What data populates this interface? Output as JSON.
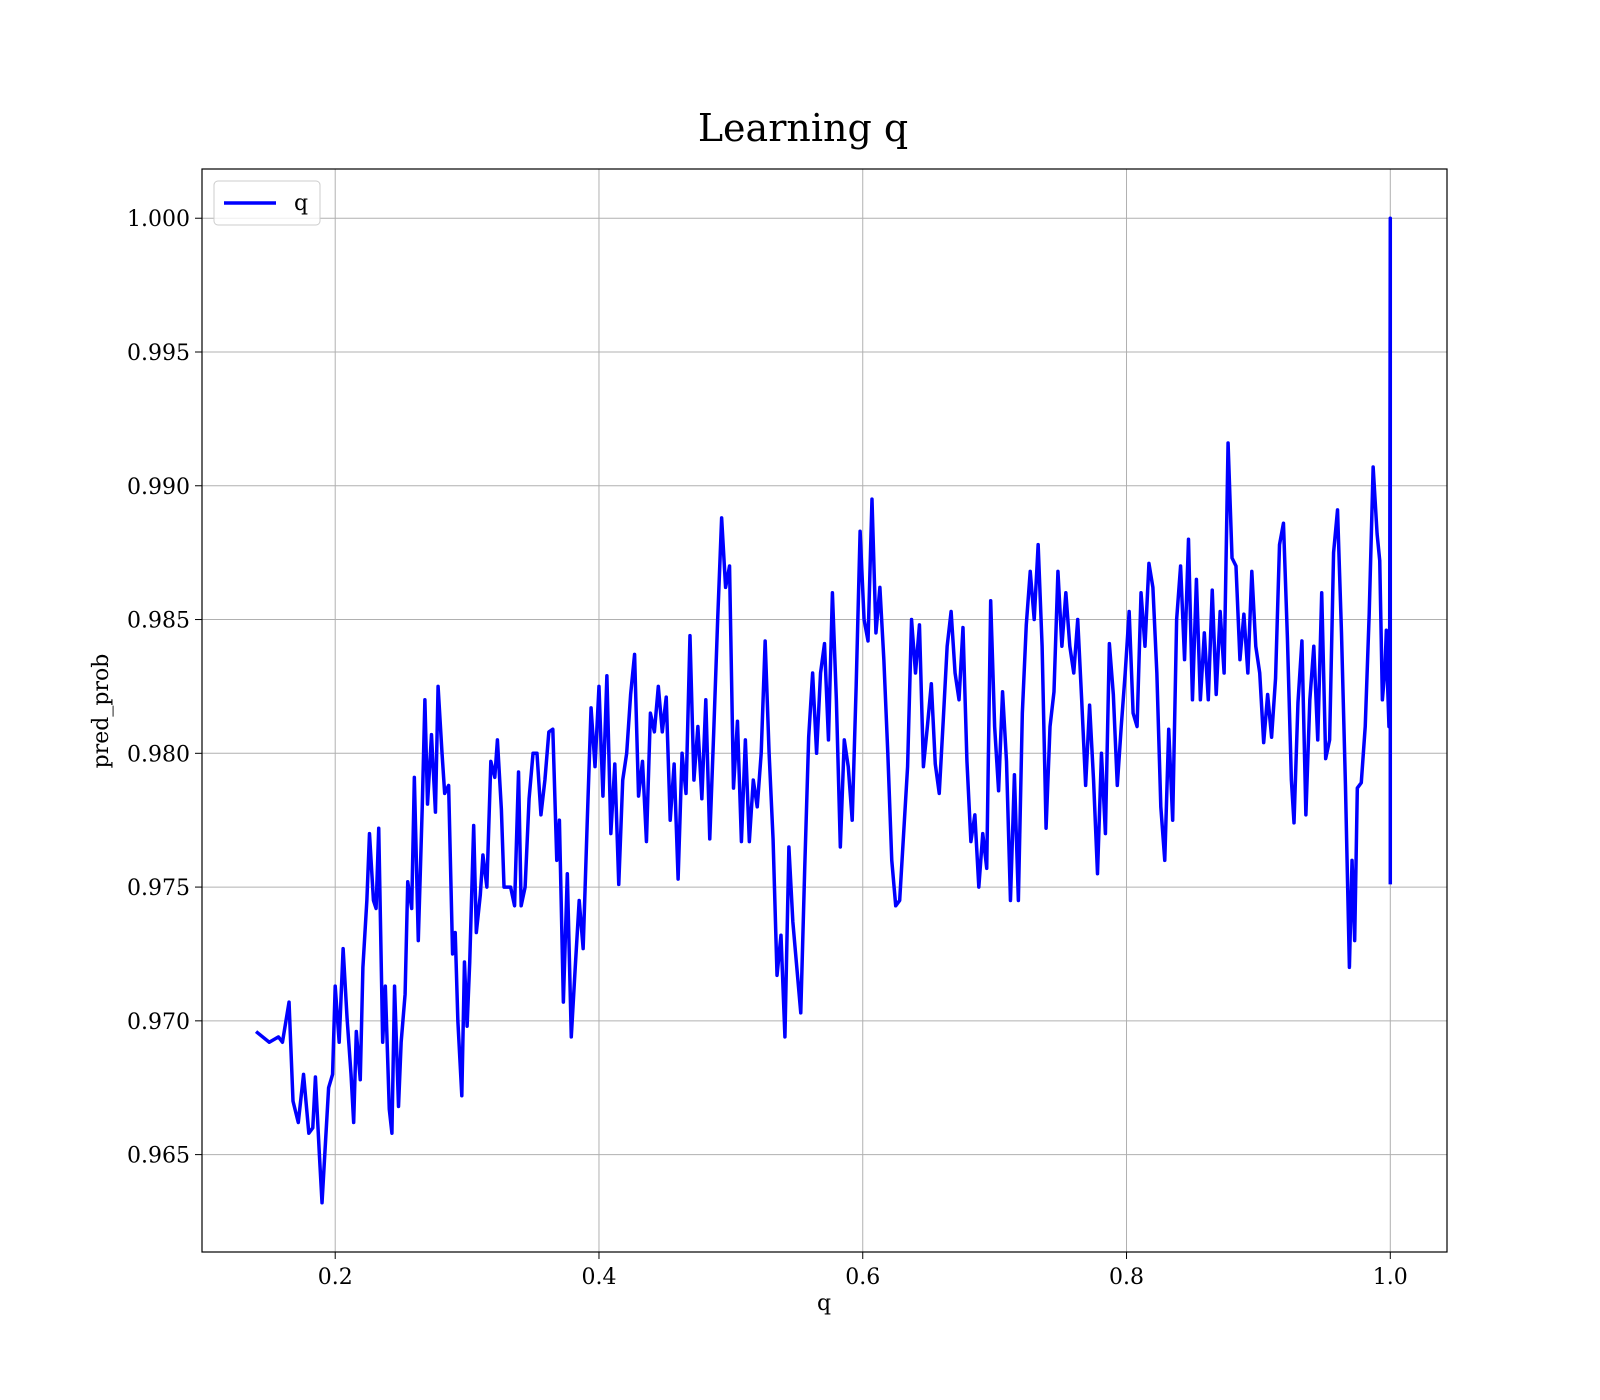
{
  "chart_data": {
    "type": "line",
    "title": "Learning q",
    "x_label": "q",
    "y_label": "pred_prob",
    "x": [
      0.14,
      0.15,
      0.157,
      0.16,
      0.165,
      0.168,
      0.172,
      0.176,
      0.18,
      0.183,
      0.185,
      0.188,
      0.19,
      0.195,
      0.198,
      0.2,
      0.203,
      0.206,
      0.209,
      0.212,
      0.214,
      0.216,
      0.219,
      0.221,
      0.224,
      0.226,
      0.229,
      0.231,
      0.233,
      0.236,
      0.238,
      0.241,
      0.243,
      0.245,
      0.248,
      0.25,
      0.253,
      0.255,
      0.258,
      0.26,
      0.263,
      0.266,
      0.268,
      0.27,
      0.273,
      0.276,
      0.278,
      0.281,
      0.283,
      0.286,
      0.289,
      0.291,
      0.293,
      0.296,
      0.298,
      0.3,
      0.302,
      0.305,
      0.307,
      0.31,
      0.312,
      0.315,
      0.318,
      0.321,
      0.323,
      0.326,
      0.328,
      0.333,
      0.336,
      0.339,
      0.341,
      0.344,
      0.347,
      0.35,
      0.353,
      0.356,
      0.359,
      0.362,
      0.365,
      0.368,
      0.37,
      0.373,
      0.376,
      0.379,
      0.382,
      0.385,
      0.388,
      0.391,
      0.394,
      0.397,
      0.4,
      0.403,
      0.406,
      0.409,
      0.412,
      0.415,
      0.418,
      0.421,
      0.424,
      0.427,
      0.43,
      0.433,
      0.436,
      0.439,
      0.442,
      0.445,
      0.448,
      0.451,
      0.454,
      0.457,
      0.46,
      0.463,
      0.466,
      0.469,
      0.472,
      0.475,
      0.478,
      0.481,
      0.484,
      0.487,
      0.49,
      0.493,
      0.496,
      0.499,
      0.502,
      0.505,
      0.508,
      0.511,
      0.514,
      0.517,
      0.52,
      0.523,
      0.526,
      0.529,
      0.532,
      0.535,
      0.538,
      0.541,
      0.544,
      0.547,
      0.55,
      0.553,
      0.556,
      0.559,
      0.562,
      0.565,
      0.568,
      0.571,
      0.574,
      0.577,
      0.58,
      0.583,
      0.586,
      0.589,
      0.592,
      0.595,
      0.598,
      0.601,
      0.604,
      0.607,
      0.61,
      0.613,
      0.616,
      0.619,
      0.622,
      0.625,
      0.628,
      0.631,
      0.634,
      0.637,
      0.64,
      0.643,
      0.646,
      0.649,
      0.652,
      0.655,
      0.658,
      0.661,
      0.664,
      0.667,
      0.67,
      0.673,
      0.676,
      0.679,
      0.682,
      0.685,
      0.688,
      0.691,
      0.694,
      0.697,
      0.7,
      0.703,
      0.706,
      0.709,
      0.712,
      0.715,
      0.718,
      0.721,
      0.724,
      0.727,
      0.73,
      0.733,
      0.736,
      0.739,
      0.742,
      0.745,
      0.748,
      0.751,
      0.754,
      0.757,
      0.76,
      0.763,
      0.766,
      0.769,
      0.772,
      0.775,
      0.778,
      0.781,
      0.784,
      0.787,
      0.79,
      0.793,
      0.796,
      0.799,
      0.802,
      0.805,
      0.808,
      0.811,
      0.814,
      0.817,
      0.82,
      0.823,
      0.826,
      0.829,
      0.832,
      0.835,
      0.838,
      0.841,
      0.844,
      0.847,
      0.85,
      0.853,
      0.856,
      0.859,
      0.862,
      0.865,
      0.868,
      0.871,
      0.874,
      0.877,
      0.88,
      0.883,
      0.886,
      0.889,
      0.892,
      0.895,
      0.898,
      0.901,
      0.904,
      0.907,
      0.91,
      0.913,
      0.916,
      0.919,
      0.922,
      0.925,
      0.927,
      0.93,
      0.933,
      0.936,
      0.939,
      0.942,
      0.945,
      0.948,
      0.951,
      0.954,
      0.957,
      0.96,
      0.963,
      0.966,
      0.969,
      0.971,
      0.973,
      0.975,
      0.978,
      0.981,
      0.984,
      0.987,
      0.99,
      0.992,
      0.994,
      0.996,
      0.997,
      0.998,
      0.999,
      0.9995,
      1,
      1
    ],
    "series": [
      {
        "name": "q",
        "color": "#0000ff",
        "values": [
          0.9696,
          0.9692,
          0.9694,
          0.9692,
          0.9707,
          0.967,
          0.9662,
          0.968,
          0.9658,
          0.966,
          0.9679,
          0.965,
          0.9632,
          0.9675,
          0.968,
          0.9713,
          0.9692,
          0.9727,
          0.9701,
          0.968,
          0.9662,
          0.9696,
          0.9678,
          0.972,
          0.9745,
          0.977,
          0.9745,
          0.9742,
          0.9772,
          0.9692,
          0.9713,
          0.9667,
          0.9658,
          0.9713,
          0.9668,
          0.9692,
          0.971,
          0.9752,
          0.9742,
          0.9791,
          0.973,
          0.978,
          0.982,
          0.9781,
          0.9807,
          0.9778,
          0.9825,
          0.98,
          0.9785,
          0.9788,
          0.9725,
          0.9733,
          0.97,
          0.9672,
          0.9722,
          0.9698,
          0.9722,
          0.9773,
          0.9733,
          0.9747,
          0.9762,
          0.975,
          0.9797,
          0.9791,
          0.9805,
          0.9779,
          0.975,
          0.975,
          0.9743,
          0.9793,
          0.9743,
          0.975,
          0.9783,
          0.98,
          0.98,
          0.9777,
          0.979,
          0.9808,
          0.9809,
          0.976,
          0.9775,
          0.9707,
          0.9755,
          0.9694,
          0.972,
          0.9745,
          0.9727,
          0.9773,
          0.9817,
          0.9795,
          0.9825,
          0.9784,
          0.9829,
          0.977,
          0.9796,
          0.9751,
          0.979,
          0.98,
          0.9822,
          0.9837,
          0.9784,
          0.9797,
          0.9767,
          0.9815,
          0.9808,
          0.9825,
          0.9808,
          0.9821,
          0.9775,
          0.9796,
          0.9753,
          0.98,
          0.9785,
          0.9844,
          0.979,
          0.981,
          0.9783,
          0.982,
          0.9768,
          0.9808,
          0.985,
          0.9888,
          0.9862,
          0.987,
          0.9787,
          0.9812,
          0.9767,
          0.9805,
          0.9767,
          0.979,
          0.978,
          0.98,
          0.9842,
          0.98,
          0.9768,
          0.9717,
          0.9732,
          0.9694,
          0.9765,
          0.9737,
          0.972,
          0.9703,
          0.9757,
          0.9806,
          0.983,
          0.98,
          0.983,
          0.9841,
          0.9805,
          0.986,
          0.982,
          0.9765,
          0.9805,
          0.9795,
          0.9775,
          0.9825,
          0.9883,
          0.985,
          0.9842,
          0.9895,
          0.9845,
          0.9862,
          0.9835,
          0.98,
          0.976,
          0.9743,
          0.9745,
          0.977,
          0.9795,
          0.985,
          0.983,
          0.9848,
          0.9795,
          0.981,
          0.9826,
          0.9796,
          0.9785,
          0.9812,
          0.984,
          0.9853,
          0.983,
          0.982,
          0.9847,
          0.9797,
          0.9767,
          0.9777,
          0.975,
          0.977,
          0.9757,
          0.9857,
          0.981,
          0.9786,
          0.9823,
          0.9797,
          0.9745,
          0.9792,
          0.9745,
          0.9815,
          0.9848,
          0.9868,
          0.985,
          0.9878,
          0.984,
          0.9772,
          0.981,
          0.9823,
          0.9868,
          0.984,
          0.986,
          0.984,
          0.983,
          0.985,
          0.982,
          0.9788,
          0.9818,
          0.979,
          0.9755,
          0.98,
          0.977,
          0.9841,
          0.9822,
          0.9788,
          0.981,
          0.983,
          0.9853,
          0.9815,
          0.981,
          0.986,
          0.984,
          0.9871,
          0.9862,
          0.983,
          0.978,
          0.976,
          0.9809,
          0.9775,
          0.985,
          0.987,
          0.9835,
          0.988,
          0.982,
          0.9865,
          0.982,
          0.9845,
          0.982,
          0.9861,
          0.9822,
          0.9853,
          0.983,
          0.9916,
          0.9873,
          0.987,
          0.9835,
          0.9852,
          0.983,
          0.9868,
          0.984,
          0.983,
          0.9804,
          0.9822,
          0.9806,
          0.9828,
          0.9878,
          0.9886,
          0.9843,
          0.979,
          0.9774,
          0.9819,
          0.9842,
          0.9777,
          0.982,
          0.984,
          0.9805,
          0.986,
          0.9798,
          0.9805,
          0.9875,
          0.9891,
          0.9845,
          0.9788,
          0.972,
          0.976,
          0.973,
          0.9787,
          0.9789,
          0.981,
          0.9852,
          0.9907,
          0.9882,
          0.9872,
          0.982,
          0.9832,
          0.9846,
          0.9825,
          0.981,
          0.9831,
          1,
          0.9751
        ]
      }
    ],
    "xlim": [
      0.099,
      1.043
    ],
    "ylim": [
      0.96136,
      1.00184
    ],
    "xticks": [
      0.2,
      0.4,
      0.6,
      0.8,
      {
        "value": 1,
        "label": "1.0"
      }
    ],
    "yticks": [
      0.965,
      {
        "value": 0.97,
        "label": "0.970"
      },
      0.975,
      {
        "value": 0.98,
        "label": "0.980"
      },
      0.985,
      {
        "value": 0.99,
        "label": "0.990"
      },
      0.995,
      {
        "value": 1,
        "label": "1.000"
      }
    ],
    "grid": true,
    "legend": "upper left"
  }
}
